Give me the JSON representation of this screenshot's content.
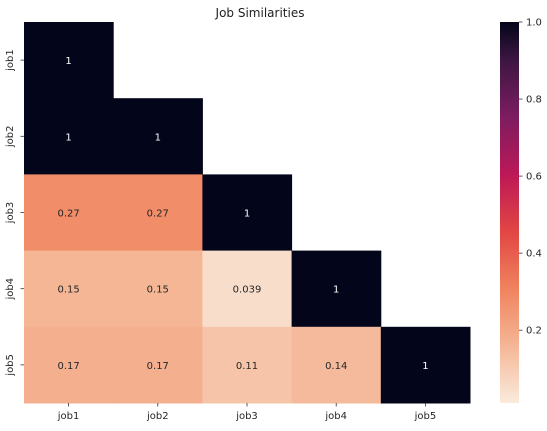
{
  "chart_data": {
    "type": "heatmap",
    "title": "Job Similarities",
    "xlabel": "",
    "ylabel": "",
    "row_labels": [
      "job1",
      "job2",
      "job3",
      "job4",
      "job5"
    ],
    "col_labels": [
      "job1",
      "job2",
      "job3",
      "job4",
      "job5"
    ],
    "mask": "upper-triangle",
    "values": [
      [
        1,
        null,
        null,
        null,
        null
      ],
      [
        1,
        1,
        null,
        null,
        null
      ],
      [
        0.27,
        0.27,
        1,
        null,
        null
      ],
      [
        0.15,
        0.15,
        0.039,
        1,
        null
      ],
      [
        0.17,
        0.17,
        0.11,
        0.14,
        1
      ]
    ],
    "value_labels": [
      [
        "1",
        "",
        "",
        "",
        ""
      ],
      [
        "1",
        "1",
        "",
        "",
        ""
      ],
      [
        "0.27",
        "0.27",
        "1",
        "",
        ""
      ],
      [
        "0.15",
        "0.15",
        "0.039",
        "1",
        ""
      ],
      [
        "0.17",
        "0.17",
        "0.11",
        "0.14",
        "1"
      ]
    ],
    "colorbar": {
      "range": [
        0,
        1
      ],
      "ticks": [
        0.2,
        0.4,
        0.6,
        0.8,
        1.0
      ],
      "tick_labels": [
        "0.2",
        "0.4",
        "0.6",
        "0.8",
        "1.0"
      ],
      "colormap": "rocket_r"
    },
    "grid": false,
    "legend": "colorbar-right"
  }
}
